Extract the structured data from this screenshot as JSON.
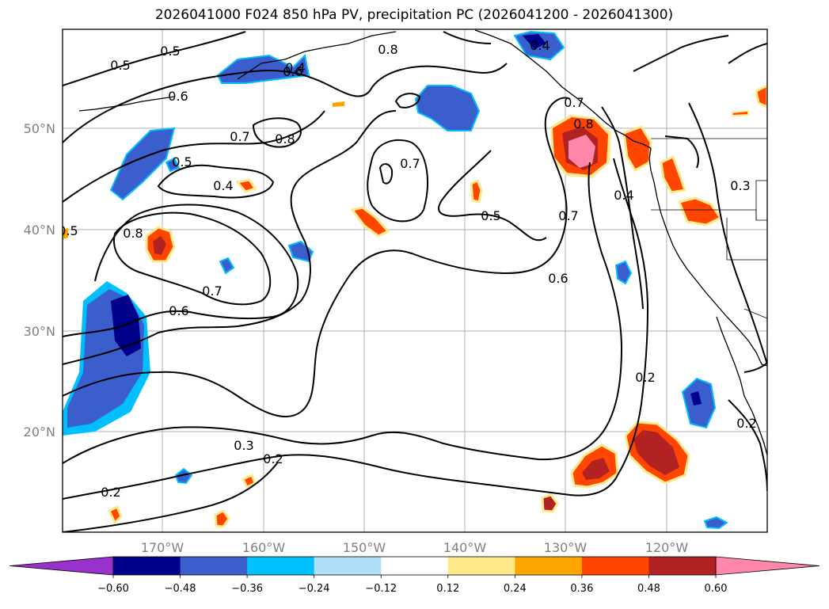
{
  "title": "2026041000 F024 850 hPa PV, precipitation PC (2026041200 - 2026041300)",
  "map": {
    "lon_labels": [
      "170°W",
      "160°W",
      "150°W",
      "140°W",
      "130°W",
      "120°W"
    ],
    "lat_labels": [
      "50°N",
      "40°N",
      "30°N",
      "20°N"
    ]
  },
  "contour_labels": [
    "0.5",
    "0.5",
    "0.6",
    "0.6",
    "0.7",
    "0.8",
    "0.8",
    "0.4",
    "0.7",
    "0.8",
    "0.6",
    "0.7",
    "0.8",
    "0.5",
    "0.4",
    "0.7",
    "0.5",
    "0.7",
    "0.6",
    "0.2",
    "0.3",
    "0.4",
    "0.3",
    "0.2",
    "0.2",
    "0.2",
    "0.5",
    "0.4"
  ],
  "colorbar": {
    "ticks": [
      "−0.60",
      "−0.48",
      "−0.36",
      "−0.24",
      "−0.12",
      "0.12",
      "0.24",
      "0.36",
      "0.48",
      "0.60"
    ],
    "colors": [
      "#9932cc",
      "#00008b",
      "#3a5fcd",
      "#00bfff",
      "#afe0fa",
      "#ffffff",
      "#ffe98a",
      "#ffa500",
      "#ff4500",
      "#b22222",
      "#ff88aa"
    ]
  }
}
